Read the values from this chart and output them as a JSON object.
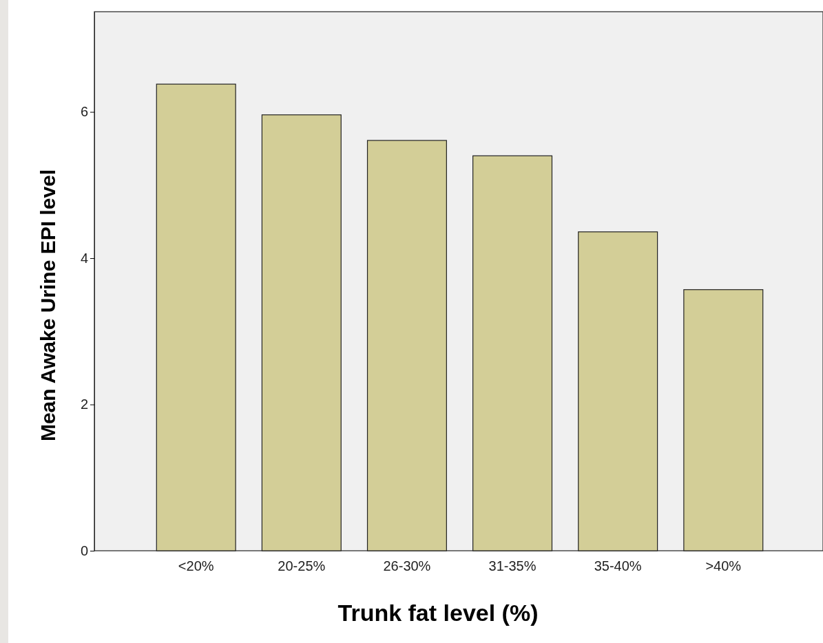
{
  "chart_data": {
    "type": "bar",
    "xlabel": "Trunk fat level (%)",
    "ylabel": "Mean Awake Urine EPI level",
    "categories": [
      "<20%",
      "20-25%",
      "26-30%",
      "31-35%",
      "35-40%",
      ">40%"
    ],
    "values": [
      6.38,
      5.96,
      5.61,
      5.4,
      4.36,
      3.57
    ],
    "color": "#d3ce97",
    "ylim": [
      0,
      7.37
    ],
    "yticks": [
      0,
      2,
      4,
      6
    ],
    "grid": false
  }
}
